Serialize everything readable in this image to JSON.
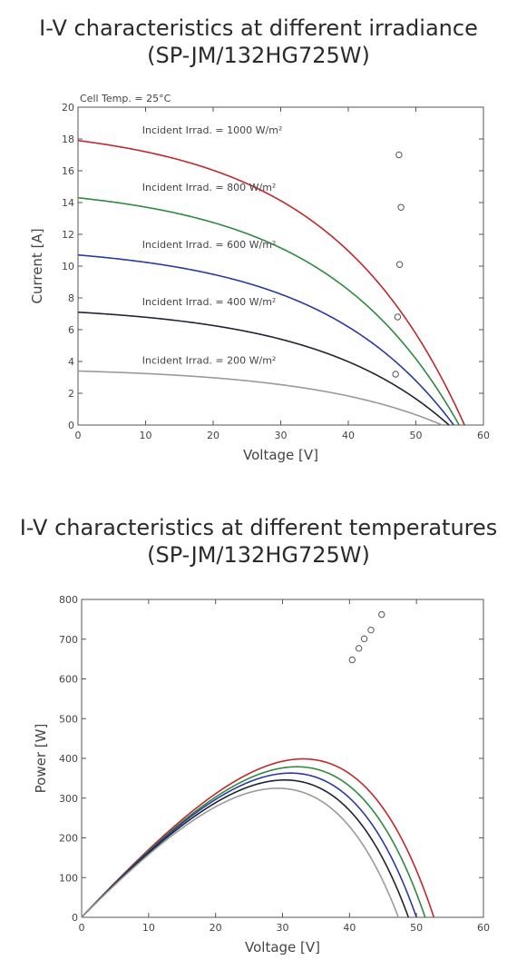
{
  "charts": {
    "iv": {
      "title_line1": "I-V characteristics at different irradiance",
      "title_line2": "(SP-JM/132HG725W)"
    },
    "pv": {
      "title_line1": "I-V characteristics at different temperatures",
      "title_line2": "(SP-JM/132HG725W)"
    }
  },
  "chart_data": [
    {
      "type": "line",
      "title": "I-V characteristics at different irradiance (SP-JM/132HG725W)",
      "annotation": "Cell Temp. = 25°C",
      "xlabel": "Voltage [V]",
      "ylabel": "Current [A]",
      "xlim": [
        0,
        60
      ],
      "ylim": [
        0,
        20
      ],
      "xticks": [
        0,
        10,
        20,
        30,
        40,
        50,
        60
      ],
      "yticks": [
        0,
        2,
        4,
        6,
        8,
        10,
        12,
        14,
        16,
        18,
        20
      ],
      "grid": false,
      "series": [
        {
          "label": "Incident Irrad. = 1000 W/m²",
          "color": "#c0282d",
          "isc": 17.9,
          "voc": 57.2,
          "vmp": 47.5,
          "imp": 17.0
        },
        {
          "label": "Incident Irrad. = 800 W/m²",
          "color": "#2e8b3e",
          "isc": 14.3,
          "voc": 56.4,
          "vmp": 47.8,
          "imp": 13.7
        },
        {
          "label": "Incident Irrad. = 600 W/m²",
          "color": "#2b3aa0",
          "isc": 10.7,
          "voc": 55.6,
          "vmp": 47.6,
          "imp": 10.1
        },
        {
          "label": "Incident Irrad. = 400 W/m²",
          "color": "#1e2433",
          "isc": 7.1,
          "voc": 54.9,
          "vmp": 47.3,
          "imp": 6.8
        },
        {
          "label": "Incident Irrad. = 200 W/m²",
          "color": "#9a9a9a",
          "isc": 3.4,
          "voc": 53.9,
          "vmp": 47.0,
          "imp": 3.2
        }
      ]
    },
    {
      "type": "line",
      "title": "I-V characteristics at different temperatures (SP-JM/132HG725W)",
      "xlabel": "Voltage [V]",
      "ylabel": "Power [W]",
      "xlim": [
        0,
        60
      ],
      "ylim": [
        0,
        800
      ],
      "xticks": [
        0,
        10,
        20,
        30,
        40,
        50,
        60
      ],
      "yticks": [
        0,
        100,
        200,
        300,
        400,
        500,
        600,
        700,
        800
      ],
      "grid": false,
      "series": [
        {
          "color": "#c0282d",
          "vmp": 44.8,
          "pmp": 762,
          "voc": 52.6
        },
        {
          "color": "#2e8b3e",
          "vmp": 43.2,
          "pmp": 723,
          "voc": 51.3
        },
        {
          "color": "#2b3aa0",
          "vmp": 42.2,
          "pmp": 701,
          "voc": 50.0
        },
        {
          "color": "#1e2433",
          "vmp": 41.4,
          "pmp": 677,
          "voc": 48.8
        },
        {
          "color": "#9a9a9a",
          "vmp": 40.4,
          "pmp": 648,
          "voc": 47.3
        }
      ]
    }
  ]
}
